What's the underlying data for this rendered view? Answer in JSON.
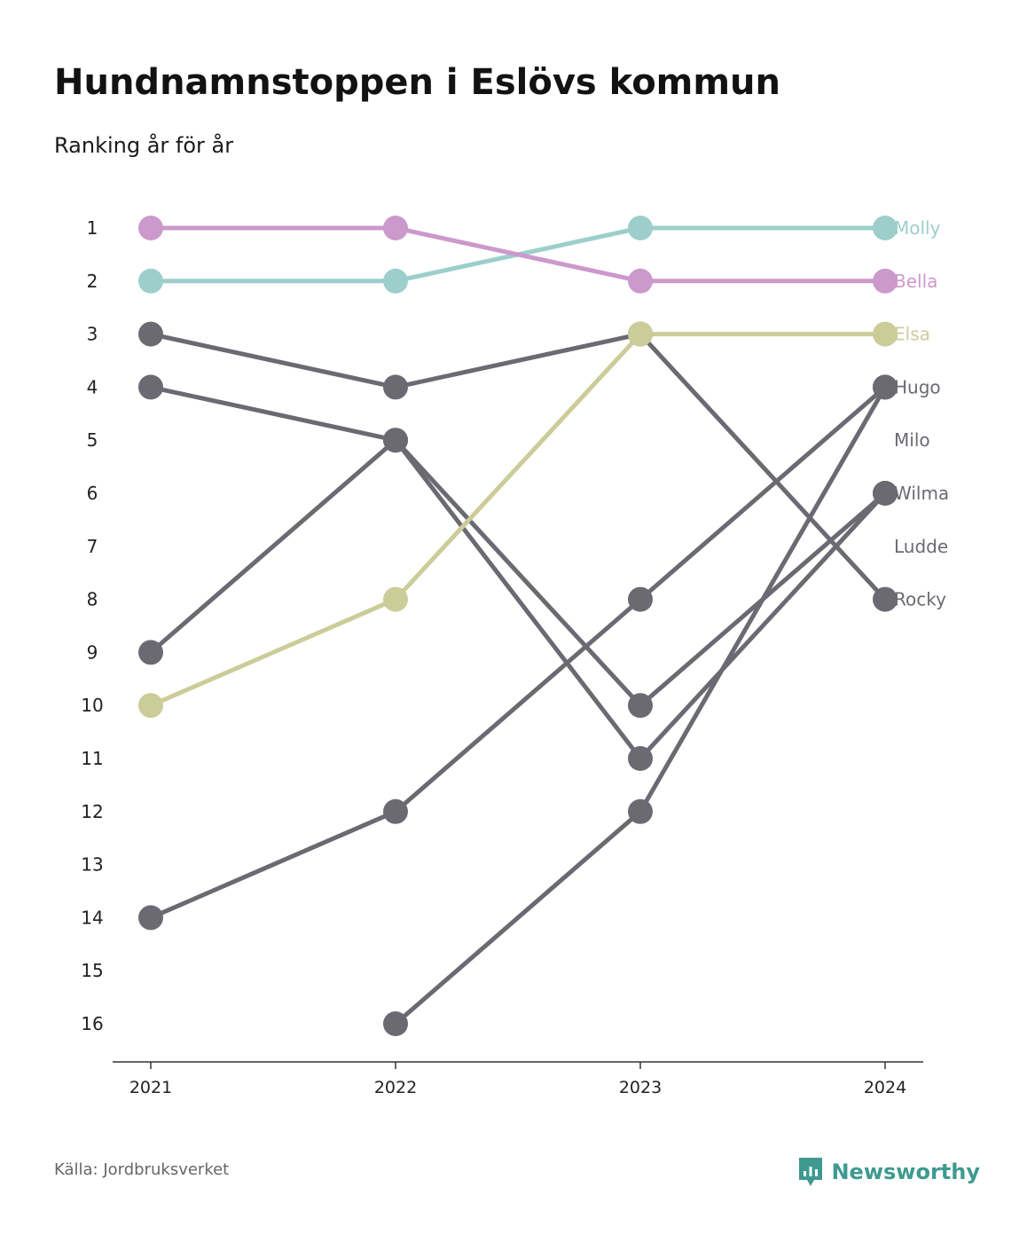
{
  "title": "Hundnamnstoppen i Eslövs kommun",
  "subtitle": "Ranking år för år",
  "source": "Källa: Jordbruksverket",
  "brand": "Newsworthy",
  "colors": {
    "highlight_molly": "#9ccfcc",
    "highlight_bella": "#cc99cc",
    "highlight_elsa": "#cccc99",
    "other": "#6b6a72",
    "axis": "#333333",
    "brand": "#3e9a8f"
  },
  "chart_data": {
    "type": "line",
    "x": [
      "2021",
      "2022",
      "2023",
      "2024"
    ],
    "y_axis": {
      "ticks": [
        1,
        2,
        3,
        4,
        5,
        6,
        7,
        8,
        9,
        10,
        11,
        12,
        13,
        14,
        15,
        16
      ],
      "reversed": true
    },
    "series": [
      {
        "name": "Molly",
        "values": [
          2,
          2,
          1,
          1
        ],
        "highlight": true,
        "color": "#9ccfcc"
      },
      {
        "name": "Bella",
        "values": [
          1,
          1,
          2,
          2
        ],
        "highlight": true,
        "color": "#cc99cc"
      },
      {
        "name": "Elsa",
        "values": [
          10,
          8,
          3,
          3
        ],
        "highlight": true,
        "color": "#cccc99"
      },
      {
        "name": "Hugo",
        "values": [
          14,
          12,
          8,
          4
        ],
        "highlight": false,
        "color": "#6b6a72"
      },
      {
        "name": "Milo",
        "values": [
          null,
          16,
          12,
          4
        ],
        "highlight": false,
        "color": "#6b6a72"
      },
      {
        "name": "Wilma",
        "values": [
          9,
          5,
          10,
          6
        ],
        "highlight": false,
        "color": "#6b6a72"
      },
      {
        "name": "Ludde",
        "values": [
          4,
          5,
          11,
          6
        ],
        "highlight": false,
        "color": "#6b6a72"
      },
      {
        "name": "Rocky",
        "values": [
          3,
          4,
          3,
          8
        ],
        "highlight": false,
        "color": "#6b6a72"
      }
    ],
    "end_labels": [
      {
        "text": "Molly",
        "rank": 1,
        "color": "#9ccfcc"
      },
      {
        "text": "Bella",
        "rank": 2,
        "color": "#cc99cc"
      },
      {
        "text": "Elsa",
        "rank": 3,
        "color": "#cccc99"
      },
      {
        "text": "Hugo",
        "rank": 4,
        "color": "#6b6a72"
      },
      {
        "text": "Milo",
        "rank": 5,
        "color": "#6b6a72"
      },
      {
        "text": "Wilma",
        "rank": 6,
        "color": "#6b6a72"
      },
      {
        "text": "Ludde",
        "rank": 7,
        "color": "#6b6a72"
      },
      {
        "text": "Rocky",
        "rank": 8,
        "color": "#6b6a72"
      }
    ]
  }
}
